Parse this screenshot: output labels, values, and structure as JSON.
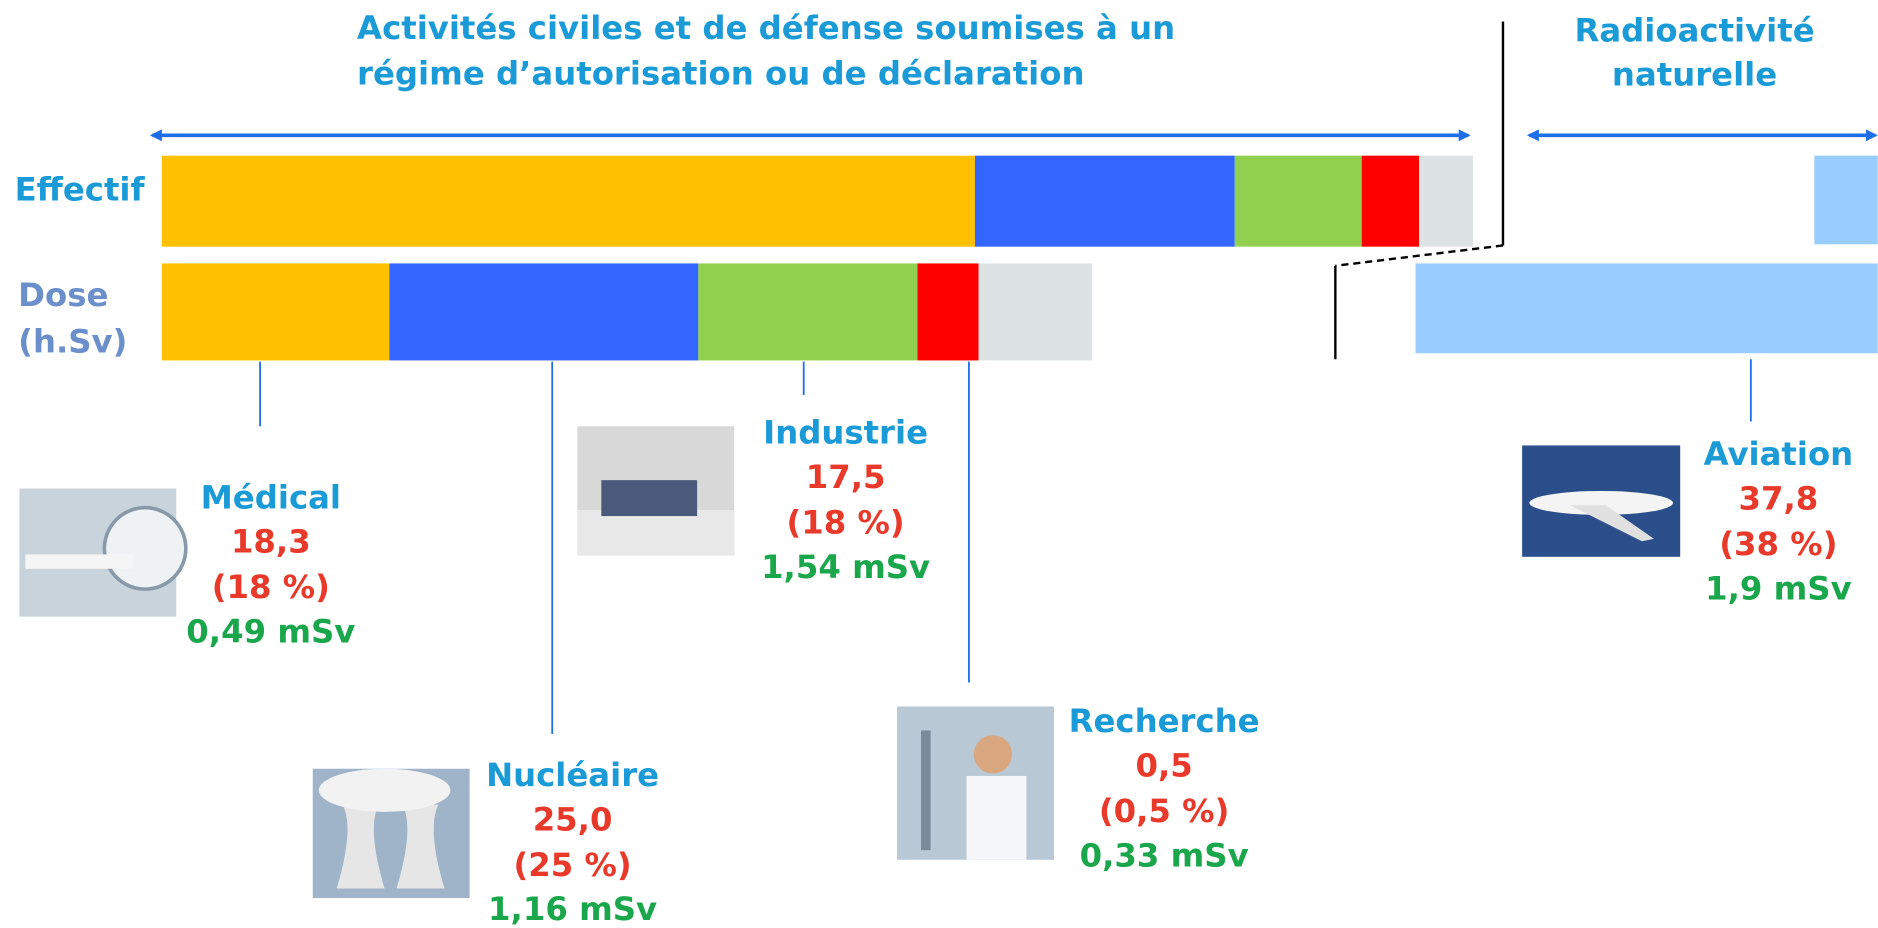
{
  "header": {
    "left_title": [
      "Activités civiles et de défense soumises à un",
      "régime d’autorisation ou de déclaration"
    ],
    "right_title": [
      "Radioactivité",
      "naturelle"
    ]
  },
  "rows": {
    "effectif": "Effectif",
    "dose": [
      "Dose",
      "(h.Sv)"
    ]
  },
  "sectors": [
    {
      "name": "Médical",
      "collective_dose": "18,3",
      "share": "(18 %)",
      "individual_dose": "0,49 mSv"
    },
    {
      "name": "Nucléaire",
      "collective_dose": "25,0",
      "share": "(25 %)",
      "individual_dose": "1,16 mSv"
    },
    {
      "name": "Industrie",
      "collective_dose": "17,5",
      "share": "(18 %)",
      "individual_dose": "1,54 mSv"
    },
    {
      "name": "Recherche",
      "collective_dose": "0,5",
      "share": "(0,5 %)",
      "individual_dose": "0,33 mSv"
    },
    {
      "name": "Aviation",
      "collective_dose": "37,8",
      "share": "(38 %)",
      "individual_dose": "1,9 mSv"
    }
  ]
}
